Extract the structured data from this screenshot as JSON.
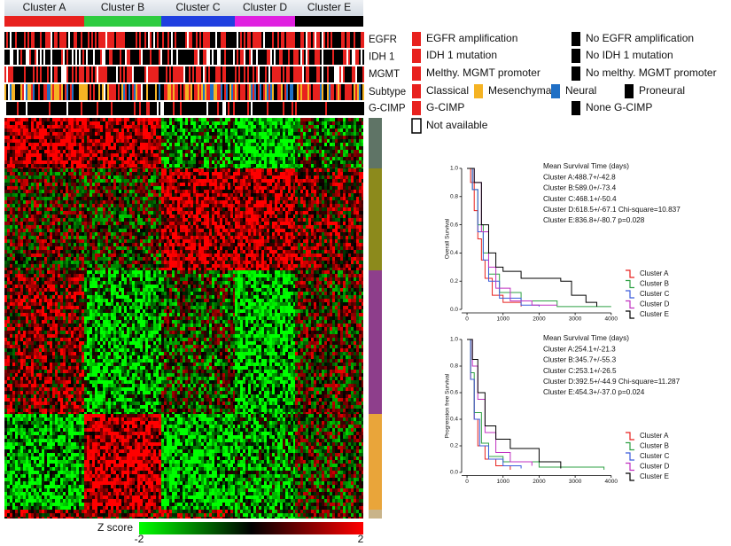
{
  "heatmap": {
    "clusters": [
      {
        "label": "Cluster A",
        "color": "#e8211e"
      },
      {
        "label": "Cluster B",
        "color": "#2ecc40"
      },
      {
        "label": "Cluster C",
        "color": "#1f3fe0"
      },
      {
        "label": "Cluster D",
        "color": "#e020e0"
      },
      {
        "label": "Cluster E",
        "color": "#000000"
      }
    ],
    "tracks": [
      "EGFR",
      "IDH 1",
      "MGMT",
      "Subtype",
      "G-CIMP"
    ],
    "legend": [
      [
        {
          "label": "EGFR amplification",
          "color": "#e8211e"
        },
        {
          "label": "No EGFR amplification",
          "color": "#000000"
        }
      ],
      [
        {
          "label": "IDH 1 mutation",
          "color": "#e8211e"
        },
        {
          "label": "No IDH 1 mutation",
          "color": "#000000"
        }
      ],
      [
        {
          "label": "Melthy. MGMT promoter",
          "color": "#e8211e"
        },
        {
          "label": "No melthy. MGMT promoter",
          "color": "#000000"
        }
      ],
      [
        {
          "label": "Classical",
          "color": "#e8211e"
        },
        {
          "label": "Mesenchymal",
          "color": "#f5b323"
        },
        {
          "label": "Neural",
          "color": "#1f6fc5"
        },
        {
          "label": "Proneural",
          "color": "#000000"
        }
      ],
      [
        {
          "label": "G-CIMP",
          "color": "#e8211e"
        },
        {
          "label": "None G-CIMP",
          "color": "#000000"
        }
      ],
      [
        {
          "label": "Not available",
          "color": "#ffffff"
        }
      ]
    ],
    "colorbar": {
      "title": "Z score",
      "zlim": [
        -2,
        2
      ],
      "colors": [
        "#00ff00",
        "#000000",
        "#ff0000"
      ]
    }
  },
  "chart_data": [
    {
      "type": "line",
      "ylabel": "Overall Survival",
      "annotations": [
        "Mean Survival Time (days)",
        "Cluster A:488.7+/-42.8",
        "Cluster B:589.0+/-73.4",
        "Cluster C:468.1+/-50.4",
        "Cluster D:618.5+/-67.1 Chi-square=10.837",
        "Cluster E:836.8+/-80.7 p=0.028"
      ],
      "xlim": [
        -100,
        4300
      ],
      "ylim": [
        -0.05,
        1.05
      ],
      "xticks": [
        0,
        1000,
        2000,
        3000,
        4000
      ],
      "yticks": [
        {
          "value": 0,
          "label": "0.0"
        },
        {
          "value": 0.2,
          "label": "0.2"
        },
        {
          "value": 0.4,
          "label": "0.4"
        },
        {
          "value": 0.6,
          "label": "0.6"
        },
        {
          "value": 0.8,
          "label": "0.8"
        },
        {
          "value": 1,
          "label": "1.0"
        }
      ],
      "series": [
        {
          "name": "Cluster A",
          "color": "#e8211e",
          "x": [
            0,
            100,
            200,
            300,
            400,
            500,
            700,
            1000,
            1500
          ],
          "values": [
            1,
            0.9,
            0.7,
            0.5,
            0.35,
            0.22,
            0.1,
            0.05,
            0.02
          ]
        },
        {
          "name": "Cluster B",
          "color": "#2ea043",
          "x": [
            0,
            150,
            300,
            450,
            600,
            900,
            1500,
            2500,
            4000
          ],
          "values": [
            1,
            0.85,
            0.6,
            0.4,
            0.25,
            0.12,
            0.06,
            0.02,
            0.02
          ]
        },
        {
          "name": "Cluster C",
          "color": "#3b5bdb",
          "x": [
            0,
            150,
            300,
            450,
            600,
            900,
            1500,
            2000
          ],
          "values": [
            1,
            0.85,
            0.55,
            0.35,
            0.2,
            0.08,
            0.03,
            0.02
          ]
        },
        {
          "name": "Cluster D",
          "color": "#c030c0",
          "x": [
            0,
            200,
            400,
            600,
            800,
            1200,
            1800,
            2500
          ],
          "values": [
            1,
            0.9,
            0.55,
            0.3,
            0.15,
            0.06,
            0.03,
            0.03
          ]
        },
        {
          "name": "Cluster E",
          "color": "#000000",
          "x": [
            0,
            200,
            400,
            600,
            800,
            1000,
            1500,
            2600,
            2900,
            3300,
            3600
          ],
          "values": [
            1,
            0.9,
            0.6,
            0.4,
            0.3,
            0.27,
            0.22,
            0.2,
            0.1,
            0.05,
            0.02
          ]
        }
      ]
    },
    {
      "type": "line",
      "ylabel": "Progression free Survival",
      "annotations": [
        "Mean Survival Time (days)",
        "Cluster A:254.1+/-21.3",
        "Cluster B:345.7+/-55.3",
        "Cluster C:253.1+/-26.5",
        "Cluster D:392.5+/-44.9 Chi-square=11.287",
        "Cluster E:454.3+/-37.0 p=0.024"
      ],
      "xlim": [
        -100,
        4300
      ],
      "ylim": [
        -0.05,
        1.05
      ],
      "xticks": [
        0,
        1000,
        2000,
        3000,
        4000
      ],
      "yticks": [
        {
          "value": 0,
          "label": "0.0"
        },
        {
          "value": 0.2,
          "label": "0.2"
        },
        {
          "value": 0.4,
          "label": "0.4"
        },
        {
          "value": 0.6,
          "label": "0.6"
        },
        {
          "value": 0.8,
          "label": "0.8"
        },
        {
          "value": 1,
          "label": "1.0"
        }
      ],
      "series": [
        {
          "name": "Cluster A",
          "color": "#e8211e",
          "x": [
            0,
            100,
            200,
            300,
            500,
            800,
            1200
          ],
          "values": [
            1,
            0.7,
            0.4,
            0.2,
            0.1,
            0.05,
            0.02
          ]
        },
        {
          "name": "Cluster B",
          "color": "#2ea043",
          "x": [
            0,
            100,
            200,
            400,
            600,
            1000,
            2000,
            3800
          ],
          "values": [
            1,
            0.75,
            0.45,
            0.22,
            0.12,
            0.08,
            0.04,
            0.02
          ]
        },
        {
          "name": "Cluster C",
          "color": "#3b5bdb",
          "x": [
            0,
            100,
            200,
            350,
            600,
            1000,
            1500
          ],
          "values": [
            1,
            0.7,
            0.4,
            0.2,
            0.1,
            0.05,
            0.03
          ]
        },
        {
          "name": "Cluster D",
          "color": "#c030c0",
          "x": [
            0,
            150,
            300,
            500,
            800,
            1200,
            1800
          ],
          "values": [
            1,
            0.8,
            0.55,
            0.3,
            0.15,
            0.08,
            0.05
          ]
        },
        {
          "name": "Cluster E",
          "color": "#000000",
          "x": [
            0,
            150,
            300,
            500,
            800,
            1200,
            2000,
            2600
          ],
          "values": [
            1,
            0.85,
            0.6,
            0.35,
            0.25,
            0.18,
            0.08,
            0.03
          ]
        }
      ]
    }
  ]
}
